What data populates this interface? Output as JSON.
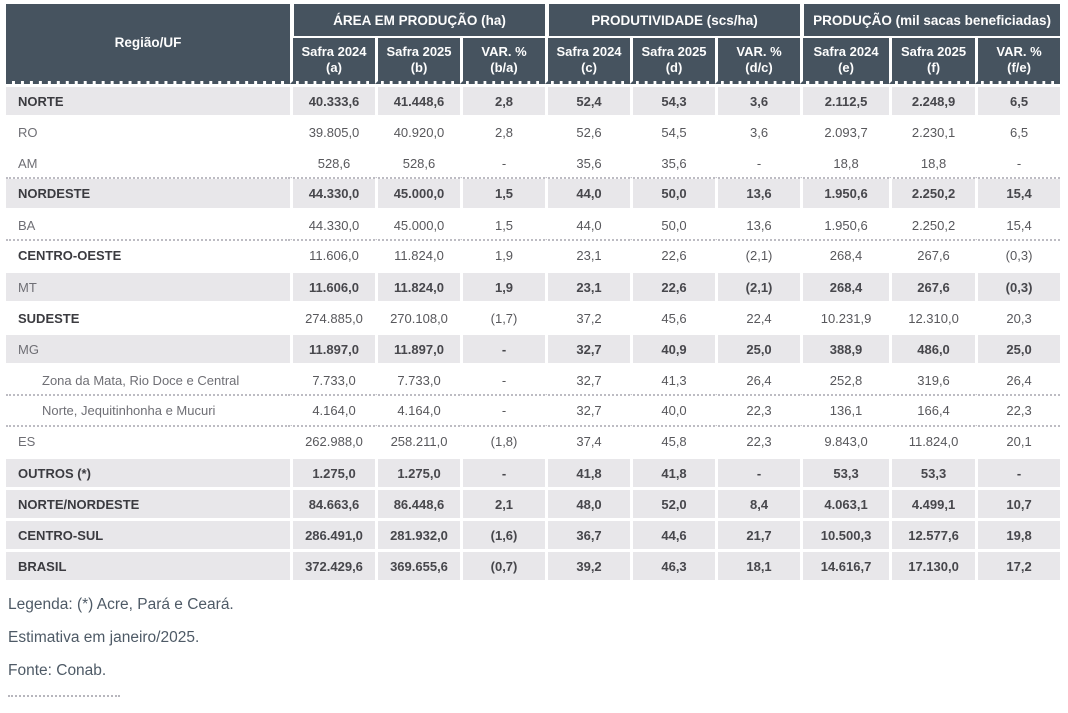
{
  "header": {
    "region_col": "Região/UF",
    "groups": [
      {
        "label": "ÁREA EM PRODUÇÃO (ha)",
        "cols": [
          {
            "l1": "Safra 2024",
            "l2": "(a)"
          },
          {
            "l1": "Safra 2025",
            "l2": "(b)"
          },
          {
            "l1": "VAR. %",
            "l2": "(b/a)"
          }
        ]
      },
      {
        "label": "PRODUTIVIDADE (scs/ha)",
        "cols": [
          {
            "l1": "Safra 2024",
            "l2": "(c)"
          },
          {
            "l1": "Safra 2025",
            "l2": "(d)"
          },
          {
            "l1": "VAR. %",
            "l2": "(d/c)"
          }
        ]
      },
      {
        "label": "PRODUÇÃO (mil sacas beneficiadas)",
        "cols": [
          {
            "l1": "Safra 2024",
            "l2": "(e)"
          },
          {
            "l1": "Safra 2025",
            "l2": "(f)"
          },
          {
            "l1": "VAR. %",
            "l2": "(f/e)"
          }
        ]
      }
    ]
  },
  "chart_data": {
    "type": "table",
    "column_groups": [
      "ÁREA EM PRODUÇÃO (ha)",
      "PRODUTIVIDADE (scs/ha)",
      "PRODUÇÃO (mil sacas beneficiadas)"
    ],
    "columns": [
      "Região/UF",
      "Safra 2024 (a)",
      "Safra 2025 (b)",
      "VAR. % (b/a)",
      "Safra 2024 (c)",
      "Safra 2025 (d)",
      "VAR. % (d/c)",
      "Safra 2024 (e)",
      "Safra 2025 (f)",
      "VAR. % (f/e)"
    ],
    "rows": [
      {
        "label": "NORTE",
        "values": [
          "40.333,6",
          "41.448,6",
          "2,8",
          "52,4",
          "54,3",
          "3,6",
          "2.112,5",
          "2.248,9",
          "6,5"
        ],
        "shaded": true,
        "bold_label": true,
        "bold_values": true,
        "dotted_top": false,
        "indent": false
      },
      {
        "label": "RO",
        "values": [
          "39.805,0",
          "40.920,0",
          "2,8",
          "52,6",
          "54,5",
          "3,6",
          "2.093,7",
          "2.230,1",
          "6,5"
        ],
        "shaded": false,
        "bold_label": false,
        "bold_values": false,
        "dotted_top": false,
        "indent": false
      },
      {
        "label": "AM",
        "values": [
          "528,6",
          "528,6",
          "-",
          "35,6",
          "35,6",
          "-",
          "18,8",
          "18,8",
          "-"
        ],
        "shaded": false,
        "bold_label": false,
        "bold_values": false,
        "dotted_top": false,
        "indent": false
      },
      {
        "label": "NORDESTE",
        "values": [
          "44.330,0",
          "45.000,0",
          "1,5",
          "44,0",
          "50,0",
          "13,6",
          "1.950,6",
          "2.250,2",
          "15,4"
        ],
        "shaded": true,
        "bold_label": true,
        "bold_values": true,
        "dotted_top": true,
        "indent": false
      },
      {
        "label": "BA",
        "values": [
          "44.330,0",
          "45.000,0",
          "1,5",
          "44,0",
          "50,0",
          "13,6",
          "1.950,6",
          "2.250,2",
          "15,4"
        ],
        "shaded": false,
        "bold_label": false,
        "bold_values": false,
        "dotted_top": false,
        "indent": false
      },
      {
        "label": "CENTRO-OESTE",
        "values": [
          "11.606,0",
          "11.824,0",
          "1,9",
          "23,1",
          "22,6",
          "(2,1)",
          "268,4",
          "267,6",
          "(0,3)"
        ],
        "shaded": false,
        "bold_label": true,
        "bold_values": false,
        "dotted_top": true,
        "indent": false
      },
      {
        "label": "MT",
        "values": [
          "11.606,0",
          "11.824,0",
          "1,9",
          "23,1",
          "22,6",
          "(2,1)",
          "268,4",
          "267,6",
          "(0,3)"
        ],
        "shaded": true,
        "bold_label": false,
        "bold_values": true,
        "dotted_top": false,
        "indent": false
      },
      {
        "label": "SUDESTE",
        "values": [
          "274.885,0",
          "270.108,0",
          "(1,7)",
          "37,2",
          "45,6",
          "22,4",
          "10.231,9",
          "12.310,0",
          "20,3"
        ],
        "shaded": false,
        "bold_label": true,
        "bold_values": false,
        "dotted_top": false,
        "indent": false
      },
      {
        "label": "MG",
        "values": [
          "11.897,0",
          "11.897,0",
          "-",
          "32,7",
          "40,9",
          "25,0",
          "388,9",
          "486,0",
          "25,0"
        ],
        "shaded": true,
        "bold_label": false,
        "bold_values": true,
        "dotted_top": false,
        "indent": false
      },
      {
        "label": "Zona da Mata, Rio Doce e Central",
        "values": [
          "7.733,0",
          "7.733,0",
          "-",
          "32,7",
          "41,3",
          "26,4",
          "252,8",
          "319,6",
          "26,4"
        ],
        "shaded": false,
        "bold_label": false,
        "bold_values": false,
        "dotted_top": false,
        "indent": true
      },
      {
        "label": "Norte, Jequitinhonha e Mucuri",
        "values": [
          "4.164,0",
          "4.164,0",
          "-",
          "32,7",
          "40,0",
          "22,3",
          "136,1",
          "166,4",
          "22,3"
        ],
        "shaded": false,
        "bold_label": false,
        "bold_values": false,
        "dotted_top": true,
        "indent": true
      },
      {
        "label": "ES",
        "values": [
          "262.988,0",
          "258.211,0",
          "(1,8)",
          "37,4",
          "45,8",
          "22,3",
          "9.843,0",
          "11.824,0",
          "20,1"
        ],
        "shaded": false,
        "bold_label": false,
        "bold_values": false,
        "dotted_top": true,
        "indent": false
      },
      {
        "label": "OUTROS (*)",
        "values": [
          "1.275,0",
          "1.275,0",
          "-",
          "41,8",
          "41,8",
          "-",
          "53,3",
          "53,3",
          "-"
        ],
        "shaded": true,
        "bold_label": true,
        "bold_values": true,
        "dotted_top": false,
        "indent": false
      },
      {
        "label": "NORTE/NORDESTE",
        "values": [
          "84.663,6",
          "86.448,6",
          "2,1",
          "48,0",
          "52,0",
          "8,4",
          "4.063,1",
          "4.499,1",
          "10,7"
        ],
        "shaded": true,
        "bold_label": true,
        "bold_values": true,
        "dotted_top": false,
        "indent": false
      },
      {
        "label": "CENTRO-SUL",
        "values": [
          "286.491,0",
          "281.932,0",
          "(1,6)",
          "36,7",
          "44,6",
          "21,7",
          "10.500,3",
          "12.577,6",
          "19,8"
        ],
        "shaded": true,
        "bold_label": true,
        "bold_values": true,
        "dotted_top": false,
        "indent": false
      },
      {
        "label": "BRASIL",
        "values": [
          "372.429,6",
          "369.655,6",
          "(0,7)",
          "39,2",
          "46,3",
          "18,1",
          "14.616,7",
          "17.130,0",
          "17,2"
        ],
        "shaded": true,
        "bold_label": true,
        "bold_values": true,
        "dotted_top": false,
        "indent": false
      }
    ]
  },
  "footer": {
    "legend": "Legenda: (*) Acre, Pará e Ceará.",
    "estimate": "Estimativa em janeiro/2025.",
    "source": "Fonte: Conab."
  },
  "colors": {
    "header_bg": "#46535F",
    "header_text": "#FDFDFD",
    "shaded_row_bg": "#E8E7EA",
    "row_bg": "#FFFFFF",
    "value_text": "#58585C",
    "bold_text": "#3B3B40",
    "dotted_line": "#BDBCC3",
    "footer_text": "#4E5A66"
  }
}
